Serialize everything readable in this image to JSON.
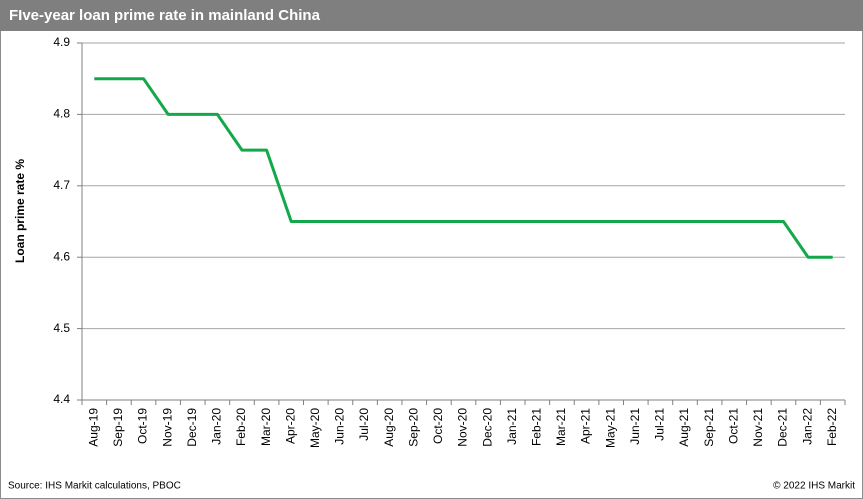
{
  "chart_data": {
    "type": "line",
    "title": "FIve-year loan prime rate in mainland China",
    "y_label": "Loan prime rate %",
    "source": "Source: IHS Markit calculations, PBOC",
    "copyright": "© 2022 IHS Markit",
    "categories": [
      "Aug-19",
      "Sep-19",
      "Oct-19",
      "Nov-19",
      "Dec-19",
      "Jan-20",
      "Feb-20",
      "Mar-20",
      "Apr-20",
      "May-20",
      "Jun-20",
      "Jul-20",
      "Aug-20",
      "Sep-20",
      "Oct-20",
      "Nov-20",
      "Dec-20",
      "Jan-21",
      "Feb-21",
      "Mar-21",
      "Apr-21",
      "May-21",
      "Jun-21",
      "Jul-21",
      "Aug-21",
      "Sep-21",
      "Oct-21",
      "Nov-21",
      "Dec-21",
      "Jan-22",
      "Feb-22"
    ],
    "values": [
      4.85,
      4.85,
      4.85,
      4.8,
      4.8,
      4.8,
      4.75,
      4.75,
      4.65,
      4.65,
      4.65,
      4.65,
      4.65,
      4.65,
      4.65,
      4.65,
      4.65,
      4.65,
      4.65,
      4.65,
      4.65,
      4.65,
      4.65,
      4.65,
      4.65,
      4.65,
      4.65,
      4.65,
      4.65,
      4.6,
      4.6
    ],
    "color": "#13a84a",
    "ylim": [
      4.4,
      4.9
    ],
    "yticks": [
      4.4,
      4.5,
      4.6,
      4.7,
      4.8,
      4.9
    ],
    "grid": true
  }
}
